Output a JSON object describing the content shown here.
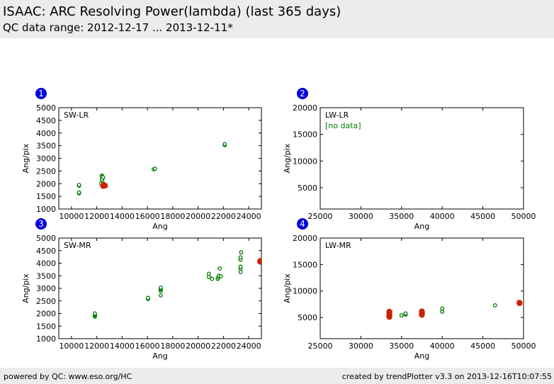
{
  "header": {
    "title": "ISAAC: ARC Resolving Power(lambda) (last 365 days)",
    "subtitle": "QC data range: 2012-12-17 ... 2013-12-11*"
  },
  "footer": {
    "left": "powered by QC: www.eso.org/HC",
    "right": "created by trendPlotter v3.3 on 2013-12-16T10:07:55"
  },
  "colors": {
    "marker_normal": "#007a00",
    "marker_highlight": "#cc2200",
    "badge": "#0000dd",
    "nodata_text": "#007a00"
  },
  "chart_data": [
    {
      "type": "scatter",
      "badge": "1",
      "label": "SW-LR",
      "xlabel": "Ang",
      "ylabel": "Ang/pix",
      "xlim": [
        9000,
        25000
      ],
      "ylim": [
        1000,
        5000
      ],
      "xticks": [
        10000,
        12000,
        14000,
        16000,
        18000,
        20000,
        22000,
        24000
      ],
      "yticks": [
        1000,
        1500,
        2000,
        2500,
        3000,
        3500,
        4000,
        4500,
        5000
      ],
      "series": [
        {
          "style": "normal",
          "points": [
            [
              10600,
              1620
            ],
            [
              10600,
              1650
            ],
            [
              10600,
              1920
            ],
            [
              10600,
              1950
            ],
            [
              12400,
              2320
            ],
            [
              12400,
              2280
            ],
            [
              12450,
              2200
            ],
            [
              12400,
              2150
            ],
            [
              12500,
              2250
            ],
            [
              12450,
              2050
            ],
            [
              12350,
              2000
            ],
            [
              12500,
              1980
            ],
            [
              16500,
              2570
            ],
            [
              16600,
              2590
            ],
            [
              22100,
              3520
            ],
            [
              22100,
              3560
            ]
          ]
        },
        {
          "style": "highlight",
          "points": [
            [
              12500,
              1910
            ],
            [
              12650,
              1920
            ],
            [
              12550,
              1950
            ]
          ]
        }
      ]
    },
    {
      "type": "scatter",
      "badge": "2",
      "label": "LW-LR",
      "note": "[no data]",
      "xlabel": "Ang",
      "ylabel": "Ang/pix",
      "xlim": [
        25000,
        50000
      ],
      "ylim": [
        1000,
        20000
      ],
      "xticks": [
        25000,
        30000,
        35000,
        40000,
        45000,
        50000
      ],
      "yticks": [
        5000,
        10000,
        15000,
        20000
      ],
      "series": []
    },
    {
      "type": "scatter",
      "badge": "3",
      "label": "SW-MR",
      "xlabel": "Ang",
      "ylabel": "Ang/pix",
      "xlim": [
        9000,
        25000
      ],
      "ylim": [
        1000,
        5000
      ],
      "xticks": [
        10000,
        12000,
        14000,
        16000,
        18000,
        20000,
        22000,
        24000
      ],
      "yticks": [
        1000,
        1500,
        2000,
        2500,
        3000,
        3500,
        4000,
        4500,
        5000
      ],
      "series": [
        {
          "style": "normal",
          "points": [
            [
              11850,
              1880
            ],
            [
              11850,
              1920
            ],
            [
              11850,
              1960
            ],
            [
              11850,
              2000
            ],
            [
              16050,
              2580
            ],
            [
              16050,
              2620
            ],
            [
              17050,
              2720
            ],
            [
              17050,
              2900
            ],
            [
              17050,
              2960
            ],
            [
              17050,
              3000
            ],
            [
              17050,
              3030
            ],
            [
              20850,
              3460
            ],
            [
              20850,
              3580
            ],
            [
              21100,
              3380
            ],
            [
              21550,
              3380
            ],
            [
              21600,
              3440
            ],
            [
              21650,
              3500
            ],
            [
              21800,
              3480
            ],
            [
              21700,
              3790
            ],
            [
              23350,
              3650
            ],
            [
              23350,
              3790
            ],
            [
              23350,
              3860
            ],
            [
              23350,
              4140
            ],
            [
              23350,
              4230
            ],
            [
              23400,
              4430
            ]
          ]
        },
        {
          "style": "highlight",
          "points": [
            [
              24900,
              4060
            ],
            [
              24900,
              4090
            ]
          ]
        }
      ]
    },
    {
      "type": "scatter",
      "badge": "4",
      "label": "LW-MR",
      "xlabel": "Ang",
      "ylabel": "Ang/pix",
      "xlim": [
        25000,
        50000
      ],
      "ylim": [
        1000,
        20000
      ],
      "xticks": [
        25000,
        30000,
        35000,
        40000,
        45000,
        50000
      ],
      "yticks": [
        5000,
        10000,
        15000,
        20000
      ],
      "series": [
        {
          "style": "normal",
          "points": [
            [
              35000,
              5400
            ],
            [
              35500,
              5550
            ],
            [
              35500,
              5750
            ],
            [
              40000,
              6100
            ],
            [
              40000,
              6700
            ],
            [
              46500,
              7300
            ]
          ]
        },
        {
          "style": "highlight",
          "points": [
            [
              33500,
              5100
            ],
            [
              33500,
              5300
            ],
            [
              33500,
              5600
            ],
            [
              33500,
              5900
            ],
            [
              33500,
              6100
            ],
            [
              37500,
              5500
            ],
            [
              37500,
              5700
            ],
            [
              37500,
              6000
            ],
            [
              37500,
              6150
            ],
            [
              49500,
              7700
            ],
            [
              49500,
              7800
            ]
          ]
        }
      ]
    }
  ]
}
